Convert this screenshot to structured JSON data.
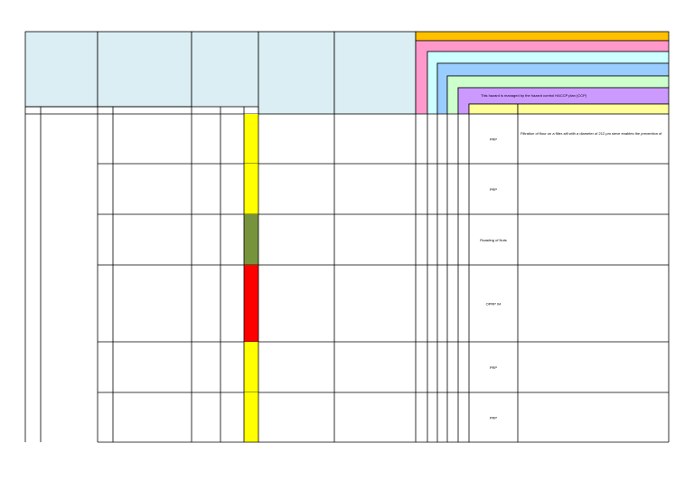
{
  "header": {
    "hazard_control_note": "This hazard is managed by the hazard control HACCP plan (CCP)"
  },
  "rows": [
    {
      "risk_color": "#ffff00",
      "control": "PRP",
      "description": "Filtration of flour on a filter-sift with a diameter of 212 μm sieve enables the prevention of"
    },
    {
      "risk_color": "#ffff00",
      "control": "PRP"
    },
    {
      "risk_color": "#77933c",
      "control": "Roasting of Nuts"
    },
    {
      "risk_color": "#ff0000",
      "control": "OPRP 04"
    },
    {
      "risk_color": "#ffff00",
      "control": "PRP"
    },
    {
      "risk_color": "#ffff00",
      "control": "PRP"
    }
  ]
}
